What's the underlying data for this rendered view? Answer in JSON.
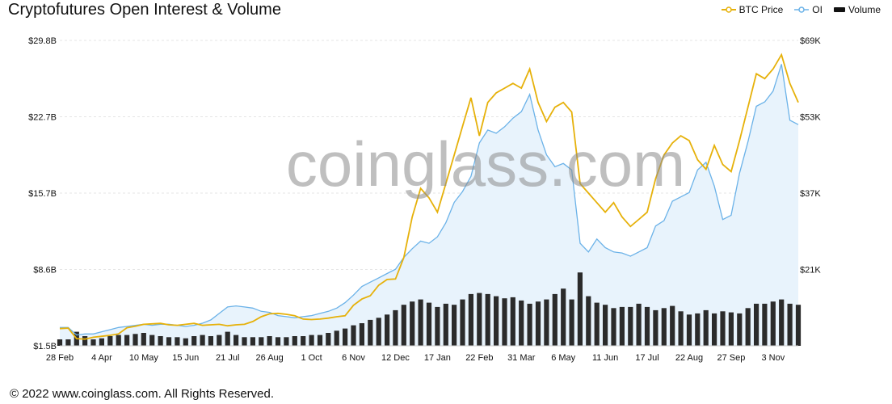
{
  "header": {
    "title": "Cryptofutures Open Interest & Volume"
  },
  "footer": {
    "copyright": "© 2022 www.coinglass.com. All Rights Reserved."
  },
  "watermark": "coinglass.com",
  "colors": {
    "btc_price": "#e6b10a",
    "oi_line": "#6bb2e8",
    "oi_fill": "#e8f3fc",
    "volume": "#2b2b2b",
    "grid": "#e5e5e5"
  },
  "chart_data": {
    "type": "line",
    "title": "Cryptofutures Open Interest & Volume",
    "legend": [
      "BTC Price",
      "OI",
      "Volume"
    ],
    "legend_position": "top-right",
    "grid": true,
    "y_left": {
      "ticks": [
        "$1.5B",
        "$8.6B",
        "$15.7B",
        "$22.7B",
        "$29.8B"
      ],
      "range_billions": [
        1.5,
        29.8
      ]
    },
    "y_right": {
      "ticks": [
        "$21K",
        "$37K",
        "$53K",
        "$69K"
      ],
      "range_usd": [
        5000,
        69000
      ]
    },
    "x_ticks": [
      "28 Feb",
      "4 Apr",
      "10 May",
      "15 Jun",
      "21 Jul",
      "26 Aug",
      "1 Oct",
      "6 Nov",
      "12 Dec",
      "17 Jan",
      "22 Feb",
      "31 Mar",
      "6 May",
      "11 Jun",
      "17 Jul",
      "22 Aug",
      "27 Sep",
      "3 Nov"
    ],
    "x_tick_index": [
      0,
      5,
      10,
      15,
      20,
      25,
      30,
      35,
      40,
      45,
      50,
      55,
      60,
      65,
      70,
      75,
      80,
      85
    ],
    "n_points": 89,
    "series": [
      {
        "name": "BTC Price",
        "unit": "USD",
        "values": [
          8600,
          8700,
          6500,
          6400,
          6800,
          7000,
          7200,
          7500,
          8800,
          9100,
          9500,
          9600,
          9700,
          9400,
          9300,
          9500,
          9700,
          9300,
          9400,
          9500,
          9200,
          9400,
          9500,
          10100,
          11100,
          11700,
          11800,
          11600,
          11300,
          10600,
          10500,
          10600,
          10800,
          11100,
          11300,
          13500,
          14800,
          15500,
          17700,
          18900,
          19000,
          23500,
          32000,
          38000,
          36000,
          33000,
          39000,
          45000,
          51000,
          57000,
          49000,
          56000,
          58000,
          59000,
          60000,
          59000,
          63000,
          56000,
          52000,
          55000,
          56000,
          54000,
          39000,
          37000,
          35000,
          33000,
          35000,
          32000,
          30000,
          31500,
          33000,
          40000,
          45000,
          47500,
          49000,
          48000,
          44000,
          42000,
          47000,
          43000,
          41500,
          48000,
          55000,
          62000,
          61000,
          63000,
          66000,
          60000,
          56000
        ]
      },
      {
        "name": "OI",
        "unit": "USD billions",
        "values": [
          3.2,
          3.2,
          2.5,
          2.6,
          2.6,
          2.8,
          3.0,
          3.2,
          3.3,
          3.4,
          3.5,
          3.4,
          3.5,
          3.5,
          3.4,
          3.3,
          3.4,
          3.6,
          3.9,
          4.5,
          5.1,
          5.2,
          5.1,
          5.0,
          4.7,
          4.6,
          4.3,
          4.2,
          4.1,
          4.2,
          4.3,
          4.5,
          4.7,
          5.0,
          5.5,
          6.2,
          7.0,
          7.4,
          7.8,
          8.2,
          8.6,
          9.7,
          10.5,
          11.2,
          11.0,
          11.6,
          12.9,
          14.8,
          15.8,
          17.2,
          20.3,
          21.5,
          21.2,
          21.8,
          22.6,
          23.2,
          24.8,
          21.5,
          19.2,
          18.1,
          18.4,
          17.8,
          11.0,
          10.2,
          11.4,
          10.6,
          10.2,
          10.1,
          9.8,
          10.2,
          10.6,
          12.6,
          13.1,
          14.9,
          15.3,
          15.7,
          17.8,
          18.5,
          16.3,
          13.2,
          13.6,
          17.5,
          20.4,
          23.7,
          24.1,
          25.1,
          27.6,
          22.4,
          22.0
        ]
      },
      {
        "name": "Volume",
        "unit": "USD billions",
        "values": [
          0.6,
          0.6,
          1.3,
          0.9,
          0.6,
          0.7,
          0.9,
          1.0,
          1.0,
          1.1,
          1.2,
          1.0,
          0.9,
          0.8,
          0.8,
          0.7,
          0.9,
          1.0,
          0.9,
          1.0,
          1.3,
          1.0,
          0.8,
          0.8,
          0.8,
          0.9,
          0.8,
          0.8,
          0.9,
          0.9,
          1.0,
          1.0,
          1.2,
          1.4,
          1.6,
          1.9,
          2.1,
          2.4,
          2.6,
          2.9,
          3.3,
          3.8,
          4.1,
          4.3,
          4.0,
          3.6,
          3.9,
          3.8,
          4.3,
          4.8,
          4.9,
          4.8,
          4.6,
          4.4,
          4.5,
          4.2,
          3.9,
          4.1,
          4.3,
          4.8,
          5.3,
          4.3,
          6.8,
          4.6,
          4.0,
          3.8,
          3.5,
          3.6,
          3.6,
          3.9,
          3.6,
          3.3,
          3.5,
          3.7,
          3.2,
          2.9,
          3.0,
          3.3,
          3.0,
          3.2,
          3.1,
          3.0,
          3.5,
          3.9,
          3.9,
          4.1,
          4.3,
          3.9,
          3.8
        ]
      }
    ]
  }
}
